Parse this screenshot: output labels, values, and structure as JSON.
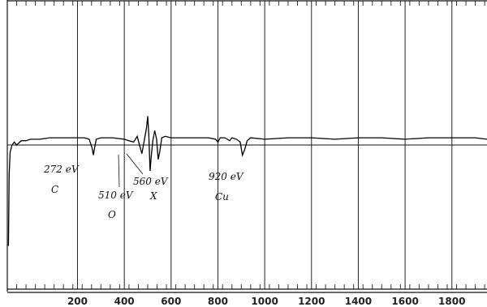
{
  "chart_data": {
    "type": "line",
    "title": "",
    "xlabel": "",
    "ylabel": "",
    "xlim": [
      -100,
      1950
    ],
    "ylim": [
      -1,
      1
    ],
    "grid": true,
    "x_ticks": [
      200,
      400,
      600,
      800,
      1000,
      1200,
      1400,
      1600,
      1800
    ],
    "x_tick_labels": [
      "200",
      "400",
      "600",
      "800",
      "1000",
      "1200",
      "1400",
      "1600",
      "1800"
    ],
    "series": [
      {
        "values": [
          [
            -95,
            -0.7
          ],
          [
            -92,
            -0.2
          ],
          [
            -88,
            -0.05
          ],
          [
            -80,
            0.0
          ],
          [
            -70,
            0.02
          ],
          [
            -60,
            0.0
          ],
          [
            -40,
            0.03
          ],
          [
            -20,
            0.03
          ],
          [
            0,
            0.04
          ],
          [
            40,
            0.04
          ],
          [
            80,
            0.05
          ],
          [
            120,
            0.05
          ],
          [
            160,
            0.05
          ],
          [
            200,
            0.05
          ],
          [
            230,
            0.05
          ],
          [
            250,
            0.04
          ],
          [
            262,
            -0.02
          ],
          [
            268,
            -0.07
          ],
          [
            272,
            -0.03
          ],
          [
            280,
            0.04
          ],
          [
            300,
            0.05
          ],
          [
            350,
            0.05
          ],
          [
            400,
            0.04
          ],
          [
            420,
            0.03
          ],
          [
            440,
            0.02
          ],
          [
            455,
            0.06
          ],
          [
            465,
            0.0
          ],
          [
            475,
            -0.06
          ],
          [
            485,
            0.03
          ],
          [
            495,
            0.12
          ],
          [
            500,
            0.2
          ],
          [
            505,
            0.06
          ],
          [
            510,
            -0.18
          ],
          [
            515,
            -0.08
          ],
          [
            522,
            0.03
          ],
          [
            530,
            0.1
          ],
          [
            538,
            0.04
          ],
          [
            545,
            -0.1
          ],
          [
            552,
            -0.04
          ],
          [
            560,
            0.05
          ],
          [
            575,
            0.06
          ],
          [
            600,
            0.05
          ],
          [
            640,
            0.05
          ],
          [
            680,
            0.05
          ],
          [
            720,
            0.05
          ],
          [
            760,
            0.05
          ],
          [
            790,
            0.04
          ],
          [
            800,
            0.02
          ],
          [
            810,
            0.05
          ],
          [
            830,
            0.05
          ],
          [
            850,
            0.03
          ],
          [
            860,
            0.05
          ],
          [
            880,
            0.04
          ],
          [
            895,
            0.02
          ],
          [
            905,
            -0.07
          ],
          [
            915,
            -0.03
          ],
          [
            925,
            0.03
          ],
          [
            940,
            0.05
          ],
          [
            1000,
            0.04
          ],
          [
            1100,
            0.05
          ],
          [
            1200,
            0.05
          ],
          [
            1300,
            0.04
          ],
          [
            1400,
            0.05
          ],
          [
            1500,
            0.05
          ],
          [
            1600,
            0.04
          ],
          [
            1700,
            0.05
          ],
          [
            1800,
            0.05
          ],
          [
            1900,
            0.05
          ],
          [
            1950,
            0.04
          ]
        ]
      }
    ],
    "baseline": 0.0,
    "annotations": [
      {
        "label": "272 eV",
        "element": "C",
        "x": 272
      },
      {
        "label": "510 eV",
        "element": "O",
        "x": 510
      },
      {
        "label": "560 eV",
        "element": "X",
        "x": 560
      },
      {
        "label": "920 eV",
        "element": "Cu",
        "x": 920
      }
    ]
  }
}
